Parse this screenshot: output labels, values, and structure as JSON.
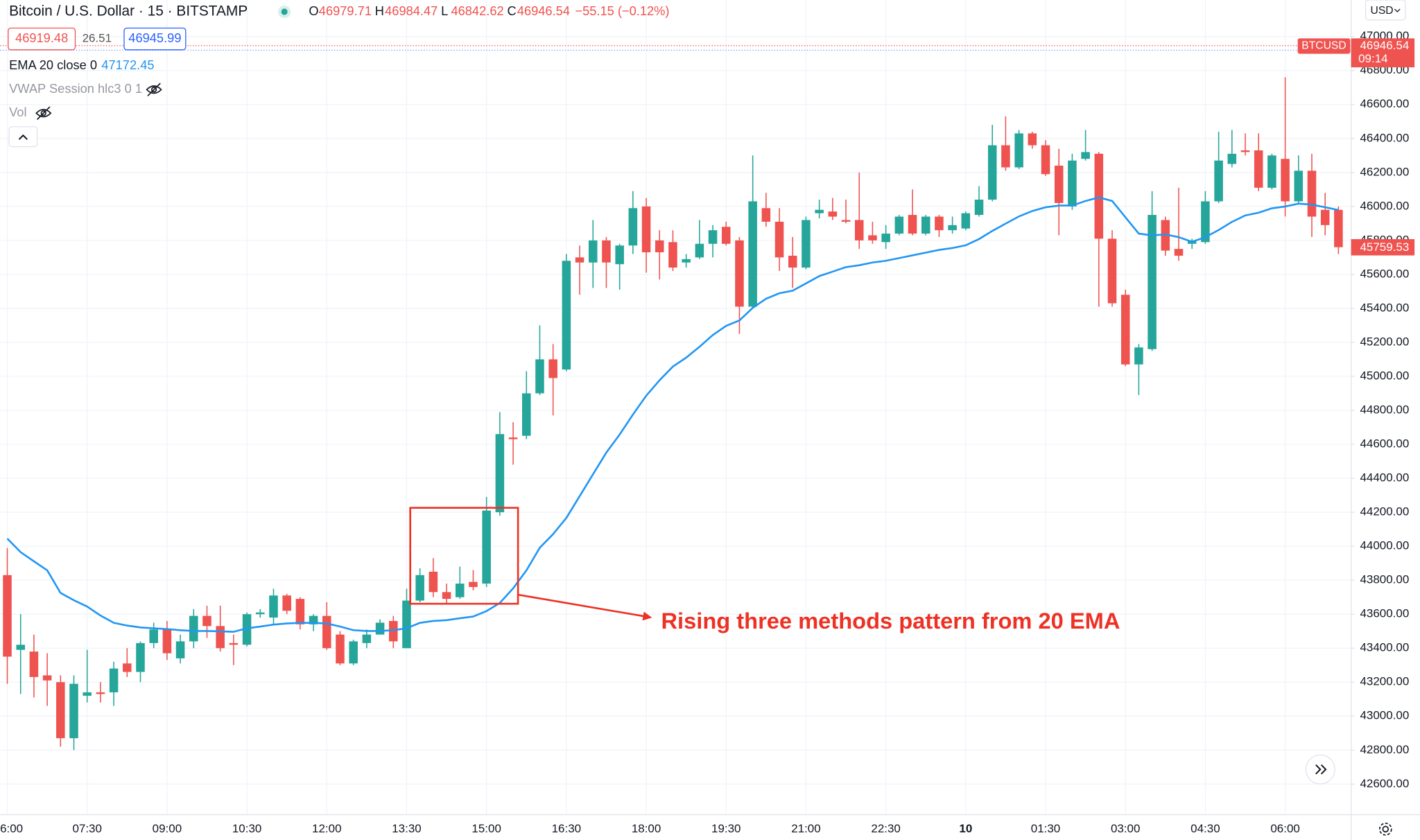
{
  "chart_data": {
    "type": "candlestick",
    "title": "Bitcoin / U.S. Dollar · 15 · BITSTAMP",
    "ohlc": [
      {
        "label": "O",
        "value": 46979.71
      },
      {
        "label": "H",
        "value": 46984.47
      },
      {
        "label": "L",
        "value": 46842.62
      },
      {
        "label": "C",
        "value": 46946.54
      }
    ],
    "change": "−55.15 (−0.12%)",
    "bid": 46919.48,
    "spread": 26.51,
    "ask": 46945.99,
    "currency": "USD",
    "symbol": "BTCUSD",
    "last_price": 46946.54,
    "countdown": "09:14",
    "price_marker": 45759.53,
    "indicators": [
      {
        "name": "VWAP Session hlc3 0 1"
      },
      {
        "name": "Vol"
      }
    ],
    "ema": {
      "name": "EMA 20 close 0",
      "value": 47172.45,
      "color": "#2196f3",
      "values": [
        44045,
        43965,
        43911,
        43858,
        43725,
        43682,
        43645,
        43592,
        43549,
        43533,
        43522,
        43517,
        43512,
        43506,
        43501,
        43501,
        43499,
        43496,
        43517,
        43527,
        43539,
        43545,
        43549,
        43549,
        43545,
        43527,
        43506,
        43501,
        43501,
        43506,
        43517,
        43549,
        43560,
        43565,
        43576,
        43586,
        43618,
        43666,
        43752,
        43858,
        43991,
        44071,
        44167,
        44295,
        44423,
        44551,
        44657,
        44775,
        44886,
        44977,
        45057,
        45110,
        45174,
        45243,
        45297,
        45329,
        45403,
        45457,
        45489,
        45504,
        45547,
        45590,
        45616,
        45643,
        45654,
        45670,
        45680,
        45696,
        45712,
        45728,
        45744,
        45755,
        45771,
        45808,
        45856,
        45899,
        45941,
        45973,
        45995,
        46005,
        46005,
        46032,
        46053,
        46032,
        45936,
        45840,
        45830,
        45835,
        45819,
        45792,
        45819,
        45861,
        45909,
        45947,
        45963,
        45989,
        46000,
        46016,
        46011,
        45995,
        45979
      ]
    },
    "up_color": "#26a69a",
    "down_color": "#ef5350",
    "categories": [
      "6:00",
      null,
      null,
      null,
      null,
      null,
      "07:30",
      null,
      null,
      null,
      null,
      null,
      "09:00",
      null,
      null,
      null,
      null,
      null,
      "10:30",
      null,
      null,
      null,
      null,
      null,
      "12:00",
      null,
      null,
      null,
      null,
      null,
      "13:30",
      null,
      null,
      null,
      null,
      null,
      "15:00",
      null,
      null,
      null,
      null,
      null,
      "16:30",
      null,
      null,
      null,
      null,
      null,
      "18:00",
      null,
      null,
      null,
      null,
      null,
      "19:30",
      null,
      null,
      null,
      null,
      null,
      "21:00",
      null,
      null,
      null,
      null,
      null,
      "22:30",
      null,
      null,
      null,
      null,
      null,
      "10",
      null,
      null,
      null,
      null,
      null,
      "01:30",
      null,
      null,
      null,
      null,
      null,
      "03:00",
      null,
      null,
      null,
      null,
      null,
      "04:30",
      null,
      null,
      null,
      null,
      null,
      "06:00",
      null,
      null,
      null,
      null
    ],
    "open": [
      43830,
      43390,
      43380,
      43240,
      43200,
      42870,
      43120,
      43140,
      43140,
      43310,
      43260,
      43430,
      43510,
      43340,
      43440,
      43590,
      43530,
      43430,
      43420,
      43600,
      43580,
      43710,
      43690,
      43540,
      43590,
      43480,
      43310,
      43430,
      43480,
      43560,
      43400,
      43680,
      43850,
      43730,
      43700,
      43790,
      43780,
      44200,
      44640,
      44650,
      44900,
      45100,
      45040,
      45700,
      45670,
      45800,
      45660,
      45770,
      46000,
      45800,
      45790,
      45670,
      45700,
      45780,
      45880,
      45800,
      45410,
      45990,
      45910,
      45710,
      45640,
      45960,
      45970,
      45920,
      45920,
      45830,
      45790,
      45840,
      45950,
      45840,
      45940,
      45860,
      45870,
      45950,
      46040,
      46360,
      46230,
      46430,
      46360,
      46240,
      46000,
      46280,
      46310,
      45810,
      45480,
      45070,
      45160,
      45920,
      45750,
      45780,
      45790,
      46030,
      46250,
      46330,
      46330,
      46110,
      46280,
      46030,
      46210,
      45980,
      45980
    ],
    "high": [
      43990,
      43600,
      43480,
      43370,
      43240,
      43240,
      43390,
      43200,
      43320,
      43400,
      43440,
      43550,
      43560,
      43480,
      43630,
      43650,
      43650,
      43480,
      43610,
      43630,
      43750,
      43720,
      43700,
      43600,
      43670,
      43500,
      43450,
      43510,
      43570,
      43590,
      43750,
      43870,
      43930,
      43780,
      43880,
      43860,
      44290,
      44790,
      44730,
      45030,
      45300,
      45190,
      45720,
      45770,
      45920,
      45820,
      45780,
      46090,
      46050,
      45860,
      45860,
      45720,
      45920,
      45890,
      45910,
      45820,
      46300,
      46080,
      45990,
      45820,
      45940,
      46040,
      46050,
      46040,
      46200,
      45910,
      45890,
      45950,
      46100,
      45950,
      45950,
      45940,
      45970,
      46120,
      46480,
      46530,
      46450,
      46440,
      46390,
      46340,
      46310,
      46450,
      46320,
      45860,
      45510,
      45190,
      46090,
      45940,
      46110,
      45810,
      46090,
      46440,
      46450,
      46430,
      46430,
      46310,
      46760,
      46300,
      46310,
      46080,
      46000
    ],
    "low": [
      43190,
      43130,
      43110,
      43060,
      42820,
      42800,
      43080,
      43080,
      43060,
      43230,
      43200,
      43400,
      43330,
      43310,
      43400,
      43460,
      43380,
      43300,
      43410,
      43580,
      43540,
      43600,
      43510,
      43500,
      43390,
      43300,
      43300,
      43400,
      43480,
      43400,
      43400,
      43670,
      43700,
      43660,
      43690,
      43740,
      43760,
      44180,
      44480,
      44630,
      44890,
      44770,
      45030,
      45480,
      45520,
      45520,
      45510,
      45720,
      45610,
      45570,
      45620,
      45640,
      45690,
      45700,
      45770,
      45250,
      45400,
      45880,
      45620,
      45520,
      45630,
      45930,
      45920,
      45900,
      45750,
      45780,
      45750,
      45830,
      45830,
      45830,
      45820,
      45840,
      45860,
      45940,
      46030,
      46210,
      46220,
      46340,
      46180,
      45830,
      45980,
      46270,
      45410,
      45410,
      45060,
      44890,
      45150,
      45710,
      45680,
      45750,
      45780,
      46020,
      46230,
      46300,
      46090,
      46100,
      45940,
      46020,
      45820,
      45830,
      45720
    ],
    "close": [
      43350,
      43420,
      43230,
      43210,
      42870,
      43190,
      43140,
      43130,
      43280,
      43260,
      43430,
      43510,
      43370,
      43440,
      43590,
      43530,
      43400,
      43420,
      43600,
      43610,
      43710,
      43620,
      43540,
      43590,
      43400,
      43310,
      43440,
      43480,
      43550,
      43440,
      43680,
      43830,
      43730,
      43690,
      43780,
      43760,
      44210,
      44660,
      44630,
      44900,
      45100,
      44990,
      45680,
      45670,
      45800,
      45670,
      45770,
      45990,
      45730,
      45730,
      45640,
      45690,
      45780,
      45860,
      45780,
      45410,
      46030,
      45910,
      45700,
      45640,
      45920,
      45980,
      45940,
      45910,
      45800,
      45800,
      45840,
      45940,
      45840,
      45940,
      45860,
      45890,
      45960,
      46040,
      46360,
      46230,
      46430,
      46360,
      46190,
      46020,
      46270,
      46320,
      45810,
      45430,
      45070,
      45170,
      45950,
      45740,
      45710,
      45800,
      46030,
      46270,
      46310,
      46320,
      46110,
      46300,
      46030,
      46210,
      45940,
      45890,
      45760
    ],
    "ylim": [
      42420,
      47215
    ],
    "yticks": [
      {
        "value": 42600,
        "label": "42600.00"
      },
      {
        "value": 42800,
        "label": "42800.00"
      },
      {
        "value": 43000,
        "label": "43000.00"
      },
      {
        "value": 43200,
        "label": "43200.00"
      },
      {
        "value": 43400,
        "label": "43400.00"
      },
      {
        "value": 43600,
        "label": "43600.00"
      },
      {
        "value": 43800,
        "label": "43800.00"
      },
      {
        "value": 44000,
        "label": "44000.00"
      },
      {
        "value": 44200,
        "label": "44200.00"
      },
      {
        "value": 44400,
        "label": "44400.00"
      },
      {
        "value": 44600,
        "label": "44600.00"
      },
      {
        "value": 44800,
        "label": "44800.00"
      },
      {
        "value": 45000,
        "label": "45000.00"
      },
      {
        "value": 45200,
        "label": "45200.00"
      },
      {
        "value": 45400,
        "label": "45400.00"
      },
      {
        "value": 45600,
        "label": "45600.00"
      },
      {
        "value": 45800,
        "label": "45800.00"
      },
      {
        "value": 46000,
        "label": "46000.00"
      },
      {
        "value": 46200,
        "label": "46200.00"
      },
      {
        "value": 46400,
        "label": "46400.00"
      },
      {
        "value": 46600,
        "label": "46600.00"
      },
      {
        "value": 46800,
        "label": "46800.00"
      },
      {
        "value": 47000,
        "label": "47000.00"
      }
    ],
    "grid": true,
    "annotation": {
      "text": "Rising three methods pattern from 20 EMA",
      "color": "#ee3124"
    }
  }
}
